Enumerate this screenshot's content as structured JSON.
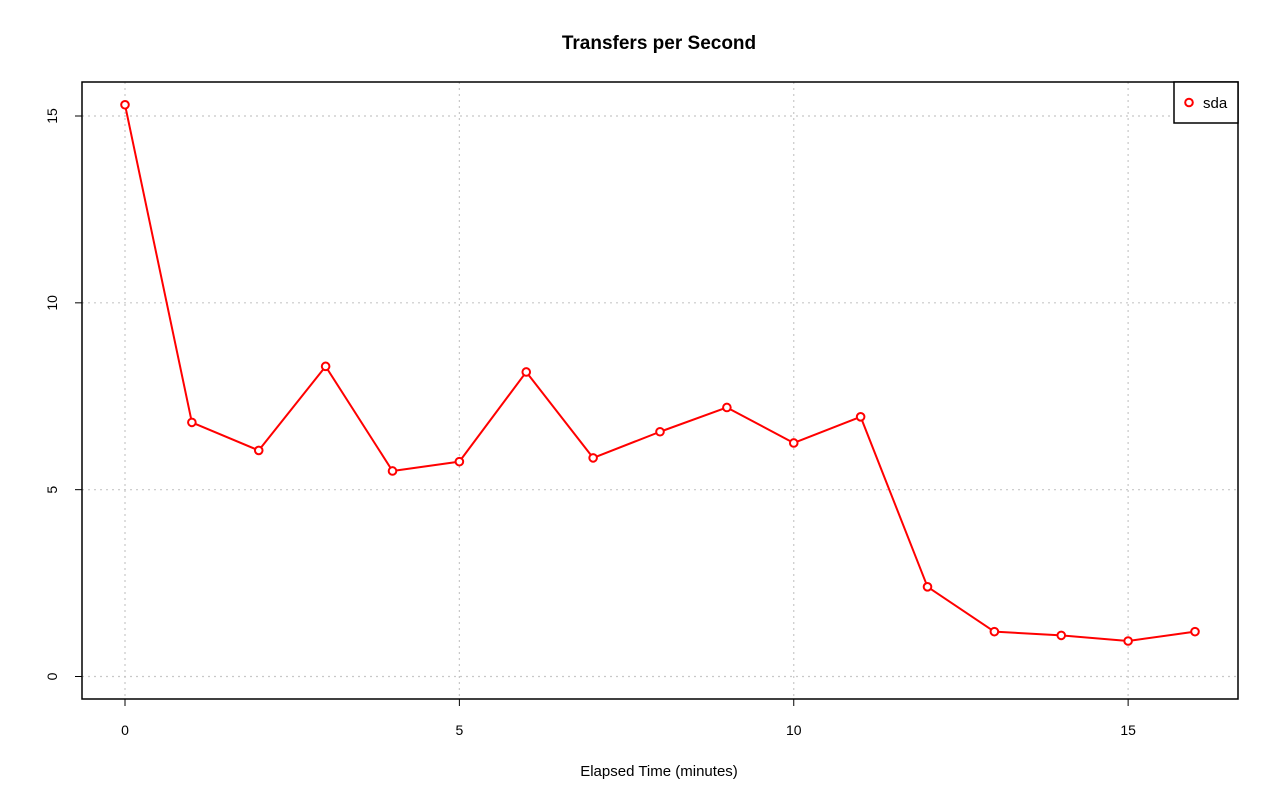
{
  "chart_data": {
    "type": "line",
    "title": "Transfers per Second",
    "xlabel": "Elapsed Time (minutes)",
    "ylabel": "",
    "xlim": [
      0,
      16
    ],
    "ylim": [
      0,
      15
    ],
    "x_ticks": [
      0,
      5,
      10,
      15
    ],
    "y_ticks": [
      0,
      5,
      10,
      15
    ],
    "grid": true,
    "legend_position": "top-right",
    "series": [
      {
        "name": "sda",
        "color": "#ff0000",
        "x": [
          0,
          1,
          2,
          3,
          4,
          5,
          6,
          7,
          8,
          9,
          10,
          11,
          12,
          13,
          14,
          15,
          16
        ],
        "values": [
          15.3,
          6.8,
          6.05,
          8.3,
          5.5,
          5.75,
          8.15,
          5.85,
          6.55,
          7.2,
          6.25,
          6.95,
          2.4,
          1.2,
          1.1,
          0.95,
          1.2
        ]
      }
    ]
  }
}
